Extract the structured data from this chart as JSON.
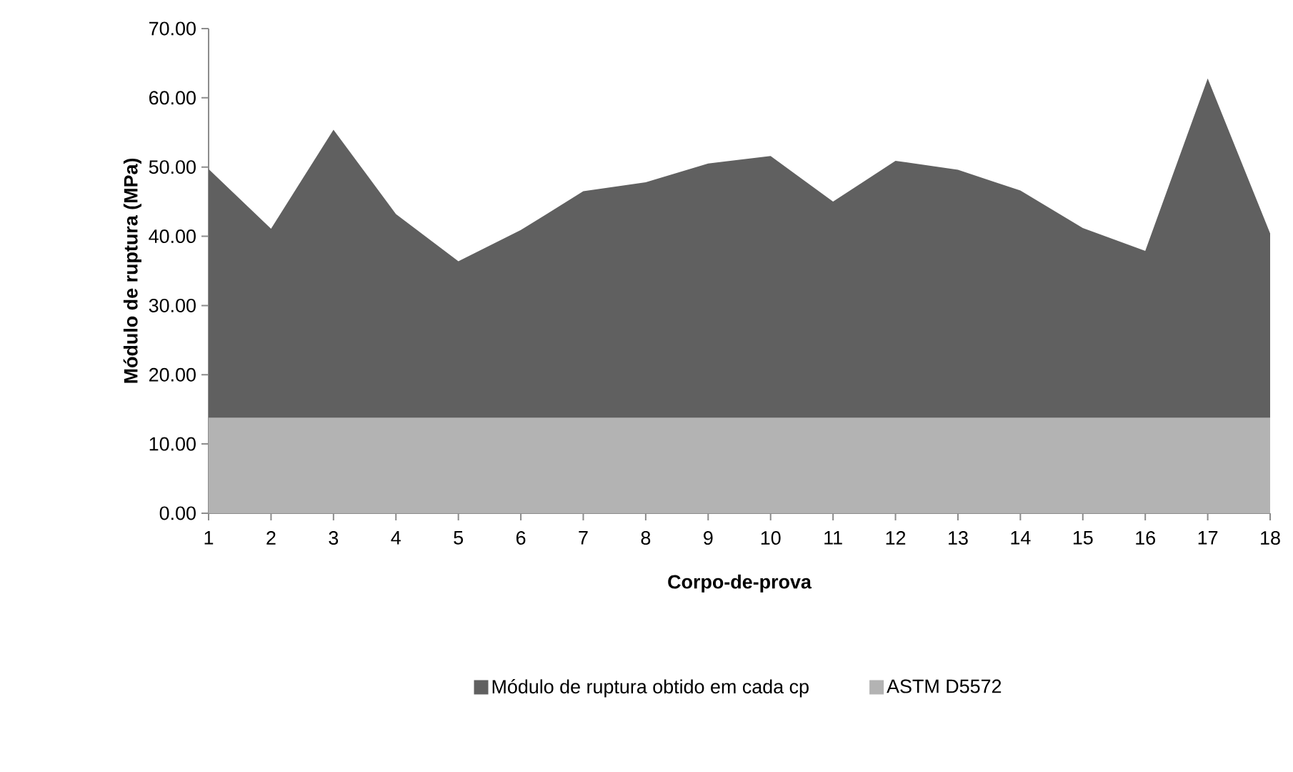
{
  "chart_data": {
    "type": "area",
    "xlabel": "Corpo-de-prova",
    "ylabel": "Módulo de ruptura (MPa)",
    "categories": [
      "1",
      "2",
      "3",
      "4",
      "5",
      "6",
      "7",
      "8",
      "9",
      "10",
      "11",
      "12",
      "13",
      "14",
      "15",
      "16",
      "17",
      "18"
    ],
    "series": [
      {
        "name": "Módulo de ruptura obtido em cada cp",
        "color": "#606060",
        "values": [
          49.7,
          41.1,
          55.4,
          43.2,
          36.4,
          40.9,
          46.5,
          47.8,
          50.5,
          51.6,
          45.0,
          50.9,
          49.6,
          46.6,
          41.2,
          37.9,
          62.8,
          40.4
        ]
      },
      {
        "name": "ASTM D5572",
        "color": "#b3b3b3",
        "values": [
          13.8,
          13.8,
          13.8,
          13.8,
          13.8,
          13.8,
          13.8,
          13.8,
          13.8,
          13.8,
          13.8,
          13.8,
          13.8,
          13.8,
          13.8,
          13.8,
          13.8,
          13.8
        ]
      }
    ],
    "ylim": [
      0,
      70
    ],
    "yticks": [
      {
        "value": 0,
        "label": "0.00"
      },
      {
        "value": 10,
        "label": "10.00"
      },
      {
        "value": 20,
        "label": "20.00"
      },
      {
        "value": 30,
        "label": "30.00"
      },
      {
        "value": 40,
        "label": "40.00"
      },
      {
        "value": 50,
        "label": "50.00"
      },
      {
        "value": 60,
        "label": "60.00"
      },
      {
        "value": 70,
        "label": "70.00"
      }
    ],
    "grid": false,
    "legend": "bottom"
  }
}
